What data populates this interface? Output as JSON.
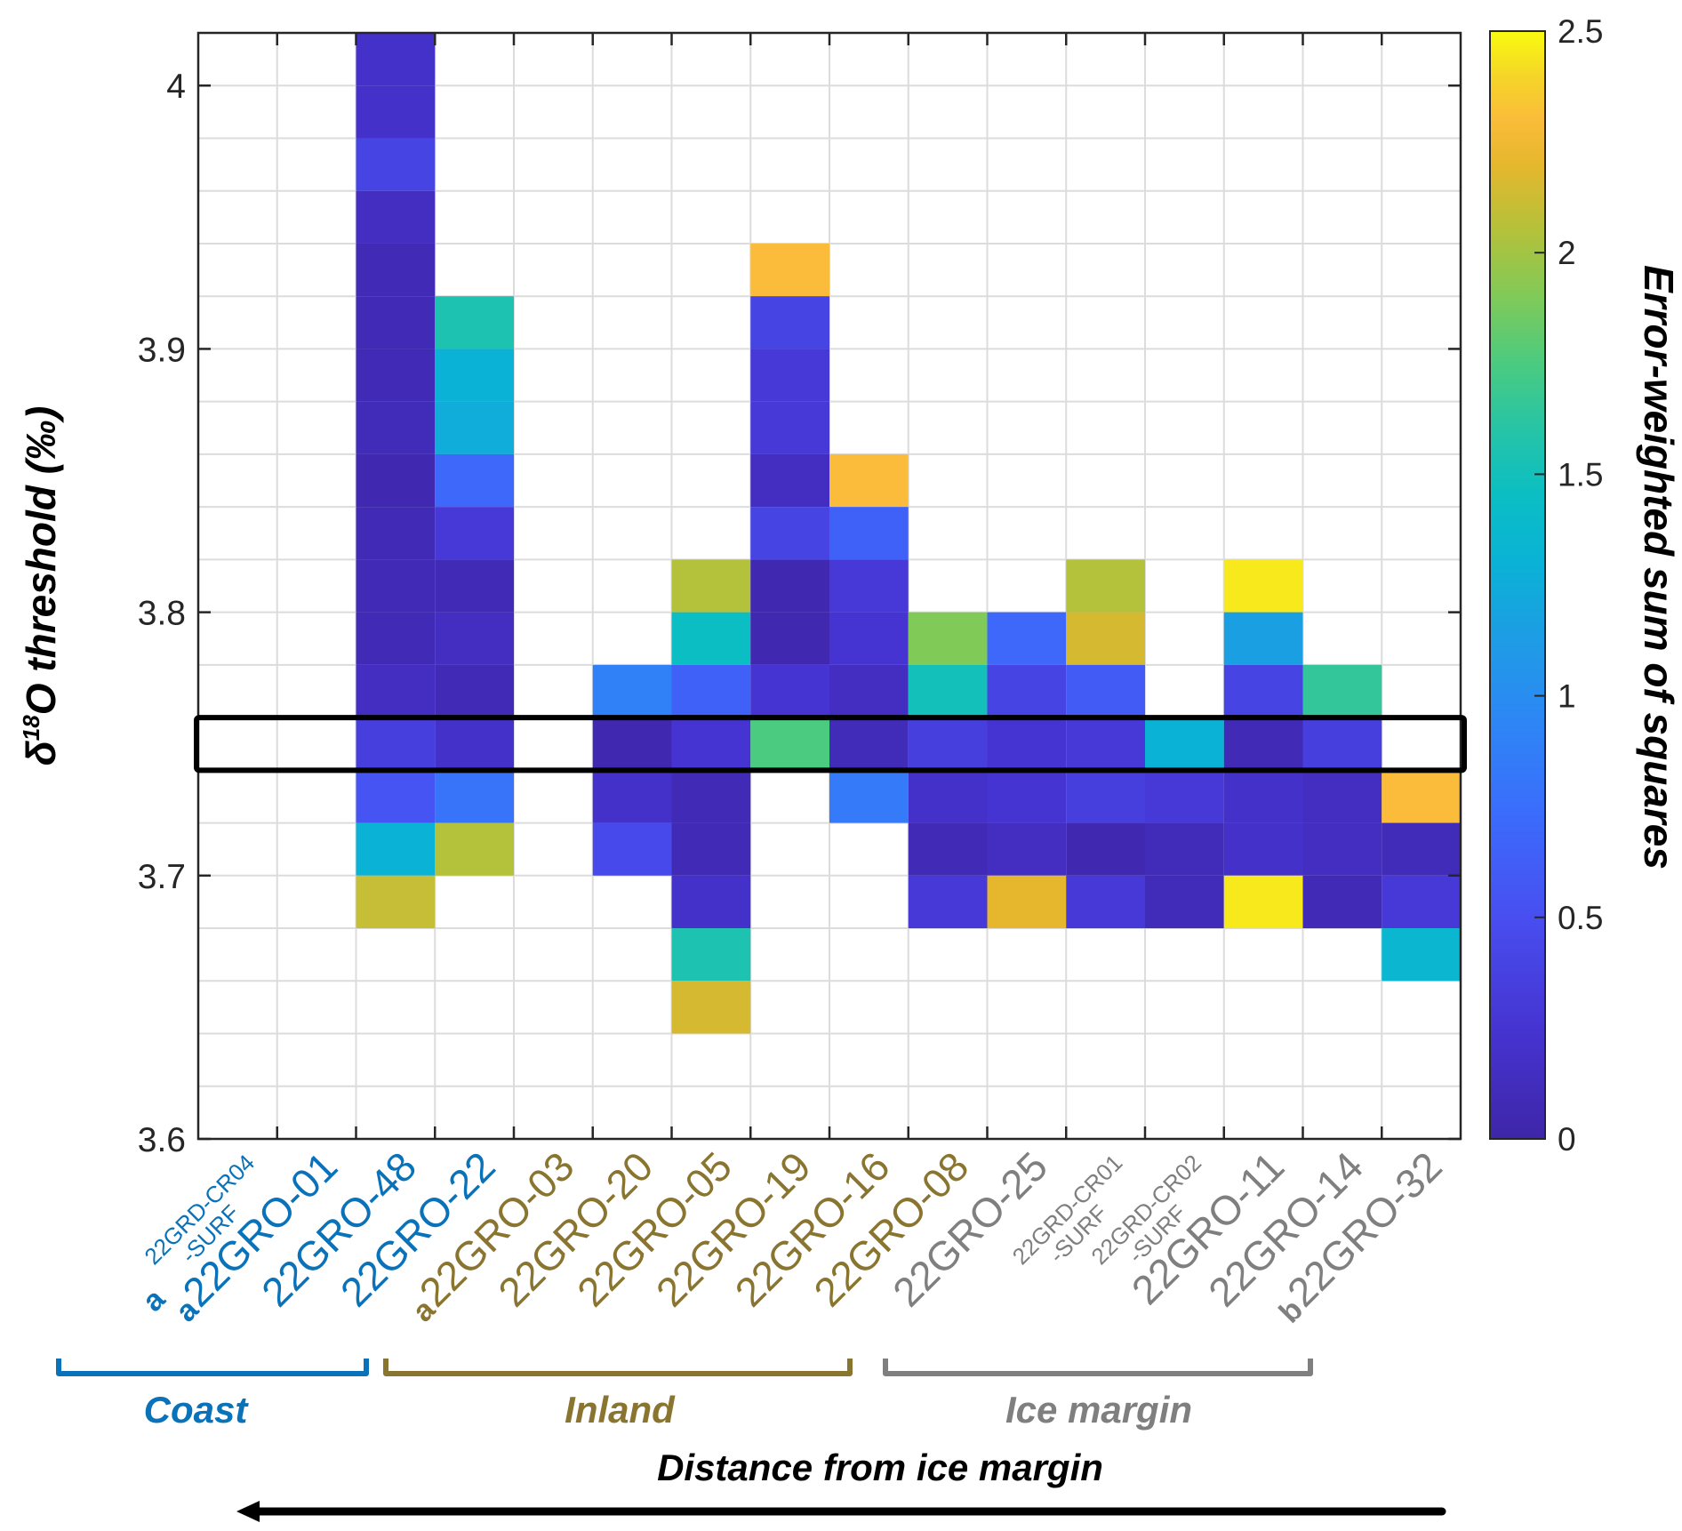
{
  "chart_data": {
    "type": "heatmap",
    "ylabel_main": "O threshold (‰)",
    "ylabel_delta": "δ",
    "ylabel_sup": "18",
    "colorbar_label": "Error-weighted sum of squares",
    "colormap": "parula",
    "clim": [
      0,
      2.5
    ],
    "colorbar_ticks": [
      "0",
      "0.5",
      "1",
      "1.5",
      "2",
      "2.5"
    ],
    "ylim": [
      3.6,
      4.02
    ],
    "bin_size": 0.02,
    "yticks": [
      "3.6",
      "3.7",
      "3.8",
      "3.9",
      "4"
    ],
    "highlight_band": [
      3.74,
      3.76
    ],
    "categories": [
      {
        "name": "22GRD-CR04",
        "sub": "-SURF",
        "prefix": "a",
        "group": "coast",
        "small": true
      },
      {
        "name": "22GRO-01",
        "prefix": "a",
        "group": "coast"
      },
      {
        "name": "22GRO-48",
        "group": "coast"
      },
      {
        "name": "22GRO-22",
        "group": "coast"
      },
      {
        "name": "22GRO-03",
        "prefix": "a",
        "group": "inland"
      },
      {
        "name": "22GRO-20",
        "group": "inland"
      },
      {
        "name": "22GRO-05",
        "group": "inland"
      },
      {
        "name": "22GRO-19",
        "group": "inland"
      },
      {
        "name": "22GRO-16",
        "group": "inland"
      },
      {
        "name": "22GRO-08",
        "group": "inland"
      },
      {
        "name": "22GRO-25",
        "group": "ice"
      },
      {
        "name": "22GRD-CR01",
        "sub": "-SURF",
        "group": "ice",
        "small": true
      },
      {
        "name": "22GRD-CR02",
        "sub": "-SURF",
        "group": "ice",
        "small": true
      },
      {
        "name": "22GRO-11",
        "group": "ice"
      },
      {
        "name": "22GRO-14",
        "group": "ice"
      },
      {
        "name": "22GRO-32",
        "prefix": "b",
        "group": "ice"
      }
    ],
    "cells": [
      {
        "col": 2,
        "y": 4.0,
        "v": 0.2
      },
      {
        "col": 2,
        "y": 3.98,
        "v": 0.2
      },
      {
        "col": 2,
        "y": 3.96,
        "v": 0.4
      },
      {
        "col": 2,
        "y": 3.94,
        "v": 0.15
      },
      {
        "col": 2,
        "y": 3.92,
        "v": 0.08
      },
      {
        "col": 2,
        "y": 3.9,
        "v": 0.08
      },
      {
        "col": 2,
        "y": 3.88,
        "v": 0.08
      },
      {
        "col": 2,
        "y": 3.86,
        "v": 0.1
      },
      {
        "col": 2,
        "y": 3.84,
        "v": 0.05
      },
      {
        "col": 2,
        "y": 3.82,
        "v": 0.08
      },
      {
        "col": 2,
        "y": 3.8,
        "v": 0.08
      },
      {
        "col": 2,
        "y": 3.78,
        "v": 0.08
      },
      {
        "col": 2,
        "y": 3.76,
        "v": 0.15
      },
      {
        "col": 2,
        "y": 3.74,
        "v": 0.35
      },
      {
        "col": 2,
        "y": 3.72,
        "v": 0.55
      },
      {
        "col": 2,
        "y": 3.7,
        "v": 1.3
      },
      {
        "col": 2,
        "y": 3.68,
        "v": 2.1
      },
      {
        "col": 3,
        "y": 3.9,
        "v": 1.55
      },
      {
        "col": 3,
        "y": 3.88,
        "v": 1.3
      },
      {
        "col": 3,
        "y": 3.86,
        "v": 1.25
      },
      {
        "col": 3,
        "y": 3.84,
        "v": 0.7
      },
      {
        "col": 3,
        "y": 3.82,
        "v": 0.3
      },
      {
        "col": 3,
        "y": 3.8,
        "v": 0.08
      },
      {
        "col": 3,
        "y": 3.78,
        "v": 0.15
      },
      {
        "col": 3,
        "y": 3.76,
        "v": 0.08
      },
      {
        "col": 3,
        "y": 3.74,
        "v": 0.2
      },
      {
        "col": 3,
        "y": 3.72,
        "v": 0.8
      },
      {
        "col": 3,
        "y": 3.7,
        "v": 2.05
      },
      {
        "col": 5,
        "y": 3.76,
        "v": 0.9
      },
      {
        "col": 5,
        "y": 3.74,
        "v": 0.05
      },
      {
        "col": 5,
        "y": 3.72,
        "v": 0.2
      },
      {
        "col": 5,
        "y": 3.7,
        "v": 0.45
      },
      {
        "col": 6,
        "y": 3.8,
        "v": 2.05
      },
      {
        "col": 6,
        "y": 3.78,
        "v": 1.45
      },
      {
        "col": 6,
        "y": 3.76,
        "v": 0.65
      },
      {
        "col": 6,
        "y": 3.74,
        "v": 0.25
      },
      {
        "col": 6,
        "y": 3.72,
        "v": 0.08
      },
      {
        "col": 6,
        "y": 3.7,
        "v": 0.08
      },
      {
        "col": 6,
        "y": 3.68,
        "v": 0.2
      },
      {
        "col": 6,
        "y": 3.66,
        "v": 1.55
      },
      {
        "col": 6,
        "y": 3.64,
        "v": 2.15
      },
      {
        "col": 7,
        "y": 3.92,
        "v": 2.3
      },
      {
        "col": 7,
        "y": 3.9,
        "v": 0.4
      },
      {
        "col": 7,
        "y": 3.88,
        "v": 0.3
      },
      {
        "col": 7,
        "y": 3.86,
        "v": 0.3
      },
      {
        "col": 7,
        "y": 3.84,
        "v": 0.15
      },
      {
        "col": 7,
        "y": 3.82,
        "v": 0.4
      },
      {
        "col": 7,
        "y": 3.8,
        "v": 0.05
      },
      {
        "col": 7,
        "y": 3.78,
        "v": 0.05
      },
      {
        "col": 7,
        "y": 3.76,
        "v": 0.25
      },
      {
        "col": 7,
        "y": 3.74,
        "v": 1.75
      },
      {
        "col": 8,
        "y": 3.84,
        "v": 2.3
      },
      {
        "col": 8,
        "y": 3.82,
        "v": 0.65
      },
      {
        "col": 8,
        "y": 3.8,
        "v": 0.3
      },
      {
        "col": 8,
        "y": 3.78,
        "v": 0.25
      },
      {
        "col": 8,
        "y": 3.76,
        "v": 0.15
      },
      {
        "col": 8,
        "y": 3.74,
        "v": 0.1
      },
      {
        "col": 8,
        "y": 3.72,
        "v": 0.85
      },
      {
        "col": 9,
        "y": 3.78,
        "v": 1.9
      },
      {
        "col": 9,
        "y": 3.76,
        "v": 1.5
      },
      {
        "col": 9,
        "y": 3.74,
        "v": 0.35
      },
      {
        "col": 9,
        "y": 3.72,
        "v": 0.2
      },
      {
        "col": 9,
        "y": 3.7,
        "v": 0.08
      },
      {
        "col": 9,
        "y": 3.68,
        "v": 0.3
      },
      {
        "col": 10,
        "y": 3.78,
        "v": 0.7
      },
      {
        "col": 10,
        "y": 3.76,
        "v": 0.4
      },
      {
        "col": 10,
        "y": 3.74,
        "v": 0.25
      },
      {
        "col": 10,
        "y": 3.72,
        "v": 0.25
      },
      {
        "col": 10,
        "y": 3.7,
        "v": 0.15
      },
      {
        "col": 10,
        "y": 3.68,
        "v": 2.2
      },
      {
        "col": 11,
        "y": 3.8,
        "v": 2.05
      },
      {
        "col": 11,
        "y": 3.78,
        "v": 2.15
      },
      {
        "col": 11,
        "y": 3.76,
        "v": 0.6
      },
      {
        "col": 11,
        "y": 3.74,
        "v": 0.3
      },
      {
        "col": 11,
        "y": 3.72,
        "v": 0.35
      },
      {
        "col": 11,
        "y": 3.7,
        "v": 0.05
      },
      {
        "col": 11,
        "y": 3.68,
        "v": 0.3
      },
      {
        "col": 12,
        "y": 3.74,
        "v": 1.3
      },
      {
        "col": 12,
        "y": 3.72,
        "v": 0.3
      },
      {
        "col": 12,
        "y": 3.7,
        "v": 0.1
      },
      {
        "col": 12,
        "y": 3.68,
        "v": 0.1
      },
      {
        "col": 13,
        "y": 3.8,
        "v": 2.45
      },
      {
        "col": 13,
        "y": 3.78,
        "v": 1.15
      },
      {
        "col": 13,
        "y": 3.76,
        "v": 0.4
      },
      {
        "col": 13,
        "y": 3.74,
        "v": 0.08
      },
      {
        "col": 13,
        "y": 3.72,
        "v": 0.2
      },
      {
        "col": 13,
        "y": 3.7,
        "v": 0.2
      },
      {
        "col": 13,
        "y": 3.68,
        "v": 2.45
      },
      {
        "col": 14,
        "y": 3.76,
        "v": 1.65
      },
      {
        "col": 14,
        "y": 3.74,
        "v": 0.35
      },
      {
        "col": 14,
        "y": 3.72,
        "v": 0.15
      },
      {
        "col": 14,
        "y": 3.7,
        "v": 0.15
      },
      {
        "col": 14,
        "y": 3.68,
        "v": 0.08
      },
      {
        "col": 15,
        "y": 3.72,
        "v": 2.3
      },
      {
        "col": 15,
        "y": 3.7,
        "v": 0.1
      },
      {
        "col": 15,
        "y": 3.68,
        "v": 0.3
      },
      {
        "col": 15,
        "y": 3.66,
        "v": 1.35
      }
    ],
    "groups": [
      {
        "key": "coast",
        "label": "Coast",
        "color": "#0a72b9",
        "from": 0,
        "to": 3
      },
      {
        "key": "inland",
        "label": "Inland",
        "color": "#8a7530",
        "from": 4,
        "to": 9
      },
      {
        "key": "ice",
        "label": "Ice margin",
        "color": "#7f7f7f",
        "from": 10,
        "to": 15
      }
    ],
    "distance_label": "Distance from ice margin",
    "arrow_direction": "left"
  }
}
